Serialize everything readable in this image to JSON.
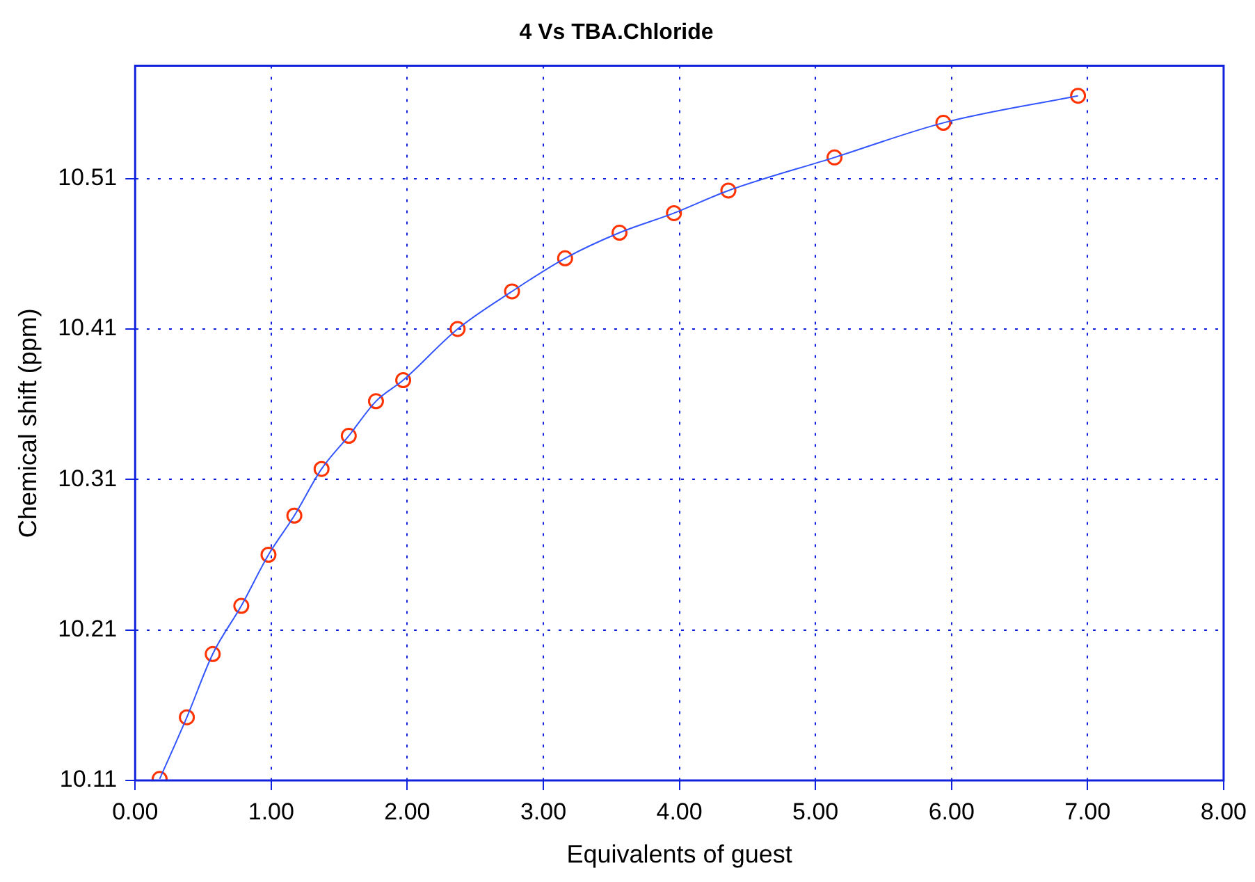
{
  "chart_data": {
    "type": "scatter",
    "title": "4 Vs TBA.Chloride",
    "xlabel": "Equivalents of guest",
    "ylabel": "Chemical shift (ppm)",
    "x": [
      0.18,
      0.38,
      0.57,
      0.78,
      0.98,
      1.17,
      1.37,
      1.57,
      1.77,
      1.97,
      2.37,
      2.77,
      3.16,
      3.56,
      3.96,
      4.36,
      5.14,
      5.94,
      6.93
    ],
    "series": [
      {
        "type": "line",
        "color": "#3355ff",
        "marker": "none",
        "values": [
          10.111,
          10.152,
          10.194,
          10.226,
          10.26,
          10.286,
          10.317,
          10.339,
          10.362,
          10.376,
          10.41,
          10.435,
          10.457,
          10.474,
          10.487,
          10.502,
          10.524,
          10.547,
          10.565
        ]
      },
      {
        "color": "#ff3300",
        "marker": "circle",
        "values": [
          10.111,
          10.152,
          10.194,
          10.226,
          10.26,
          10.286,
          10.317,
          10.339,
          10.362,
          10.376,
          10.41,
          10.435,
          10.457,
          10.474,
          10.487,
          10.502,
          10.524,
          10.547,
          10.565
        ]
      }
    ],
    "xlim": [
      0,
      8
    ],
    "xticks": [
      {
        "value": 0,
        "label": "0.00"
      },
      {
        "value": 1,
        "label": "1.00"
      },
      {
        "value": 2,
        "label": "2.00"
      },
      {
        "value": 3,
        "label": "3.00"
      },
      {
        "value": 4,
        "label": "4.00"
      },
      {
        "value": 5,
        "label": "5.00"
      },
      {
        "value": 6,
        "label": "6.00"
      },
      {
        "value": 7,
        "label": "7.00"
      },
      {
        "value": 8,
        "label": "8.00"
      }
    ],
    "ylim": [
      10.11,
      10.585
    ],
    "yticks": [
      10.11,
      10.21,
      10.31,
      10.41,
      10.51
    ],
    "grid": true,
    "legend": false
  }
}
